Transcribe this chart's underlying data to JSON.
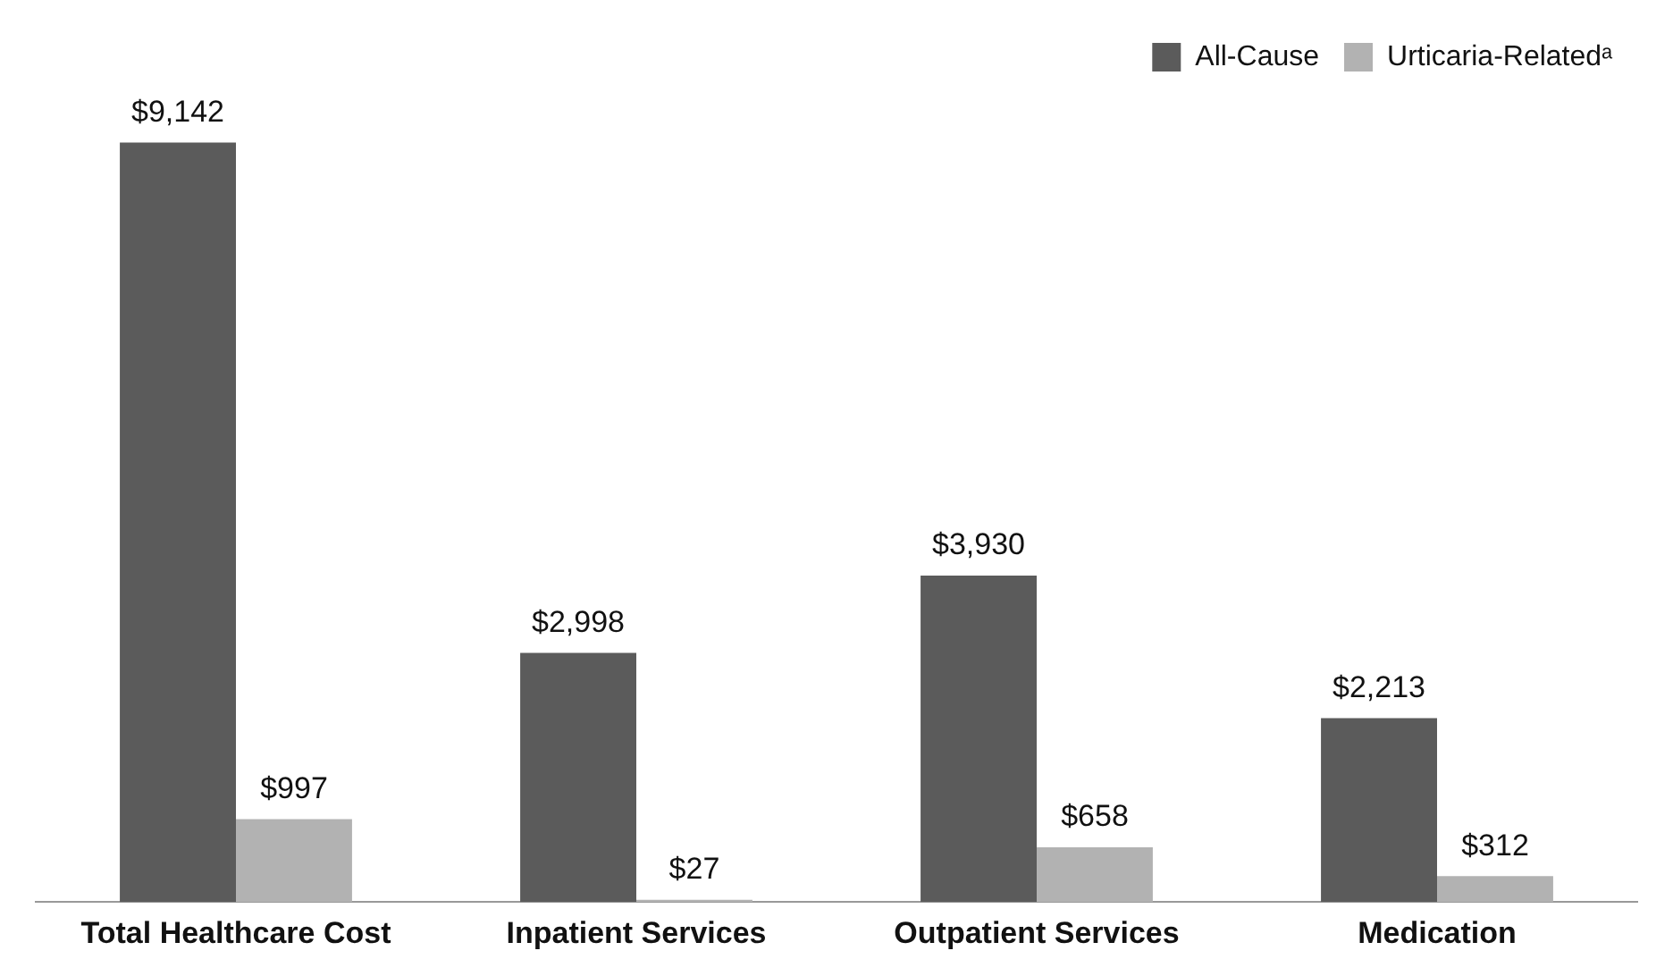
{
  "chart_data": {
    "type": "bar",
    "categories": [
      "Total Healthcare Cost",
      "Inpatient Services",
      "Outpatient Services",
      "Medication"
    ],
    "series": [
      {
        "name": "All-Cause",
        "color": "#5b5b5b",
        "values": [
          9142,
          2998,
          3930,
          2213
        ],
        "value_labels": [
          "$9,142",
          "$2,998",
          "$3,930",
          "$2,213"
        ]
      },
      {
        "name": "Urticaria-Relatedᵃ",
        "color": "#b2b2b2",
        "values": [
          997,
          27,
          658,
          312
        ],
        "value_labels": [
          "$997",
          "$27",
          "$658",
          "$312"
        ]
      }
    ],
    "legend": "top right"
  }
}
